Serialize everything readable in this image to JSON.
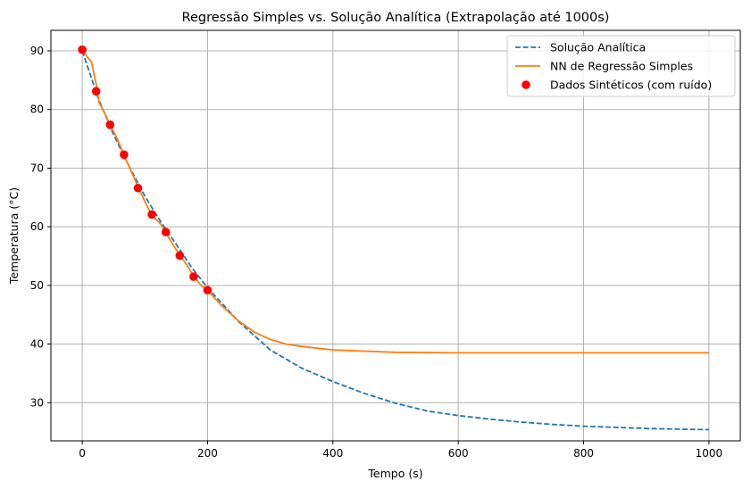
{
  "chart_data": {
    "type": "line",
    "title": "Regressão Simples vs. Solução Analítica (Extrapolação até 1000s)",
    "xlabel": "Tempo (s)",
    "ylabel": "Temperatura (°C)",
    "xlim": [
      -50,
      1050
    ],
    "ylim": [
      23.5,
      93.5
    ],
    "xticks": [
      0,
      200,
      400,
      600,
      800,
      1000
    ],
    "yticks": [
      30,
      40,
      50,
      60,
      70,
      80,
      90
    ],
    "grid": true,
    "legend_position": "top-right",
    "series": [
      {
        "name": "Solução Analítica",
        "style": "dashed",
        "color": "#1f77b4",
        "x": [
          0,
          25,
          50,
          75,
          100,
          125,
          150,
          175,
          200,
          250,
          300,
          350,
          400,
          450,
          500,
          550,
          600,
          650,
          700,
          750,
          800,
          850,
          900,
          950,
          1000
        ],
        "y": [
          90.0,
          82.1,
          75.7,
          70.3,
          65.2,
          60.9,
          57.0,
          53.0,
          49.6,
          43.8,
          39.0,
          35.9,
          33.6,
          31.6,
          29.9,
          28.6,
          27.8,
          27.2,
          26.7,
          26.3,
          26.0,
          25.8,
          25.6,
          25.5,
          25.4
        ]
      },
      {
        "name": "NN de Regressão Simples",
        "style": "solid",
        "color": "#ff7f0e",
        "x": [
          0,
          15,
          22,
          27,
          35,
          45,
          55,
          67,
          80,
          90,
          100,
          111,
          125,
          133,
          145,
          156,
          167,
          178,
          190,
          200,
          220,
          250,
          275,
          300,
          325,
          350,
          375,
          400,
          450,
          500,
          600,
          700,
          800,
          900,
          1000
        ],
        "y": [
          90.1,
          88.0,
          84.5,
          81.2,
          79.5,
          77.3,
          75.2,
          72.2,
          69.0,
          66.6,
          64.3,
          62.0,
          60.5,
          59.1,
          56.9,
          55.1,
          53.5,
          51.5,
          50.0,
          49.2,
          46.8,
          43.9,
          42.0,
          40.8,
          40.0,
          39.6,
          39.3,
          39.0,
          38.8,
          38.6,
          38.5,
          38.5,
          38.5,
          38.5,
          38.5
        ]
      },
      {
        "name": "Dados Sintéticos (com ruído)",
        "style": "scatter",
        "color": "#ff0000",
        "x": [
          0,
          22.2,
          44.4,
          66.7,
          88.9,
          111.1,
          133.3,
          155.6,
          177.8,
          200
        ],
        "y": [
          90.2,
          83.1,
          77.4,
          72.3,
          66.6,
          62.1,
          59.1,
          55.1,
          51.5,
          49.2
        ]
      }
    ]
  }
}
